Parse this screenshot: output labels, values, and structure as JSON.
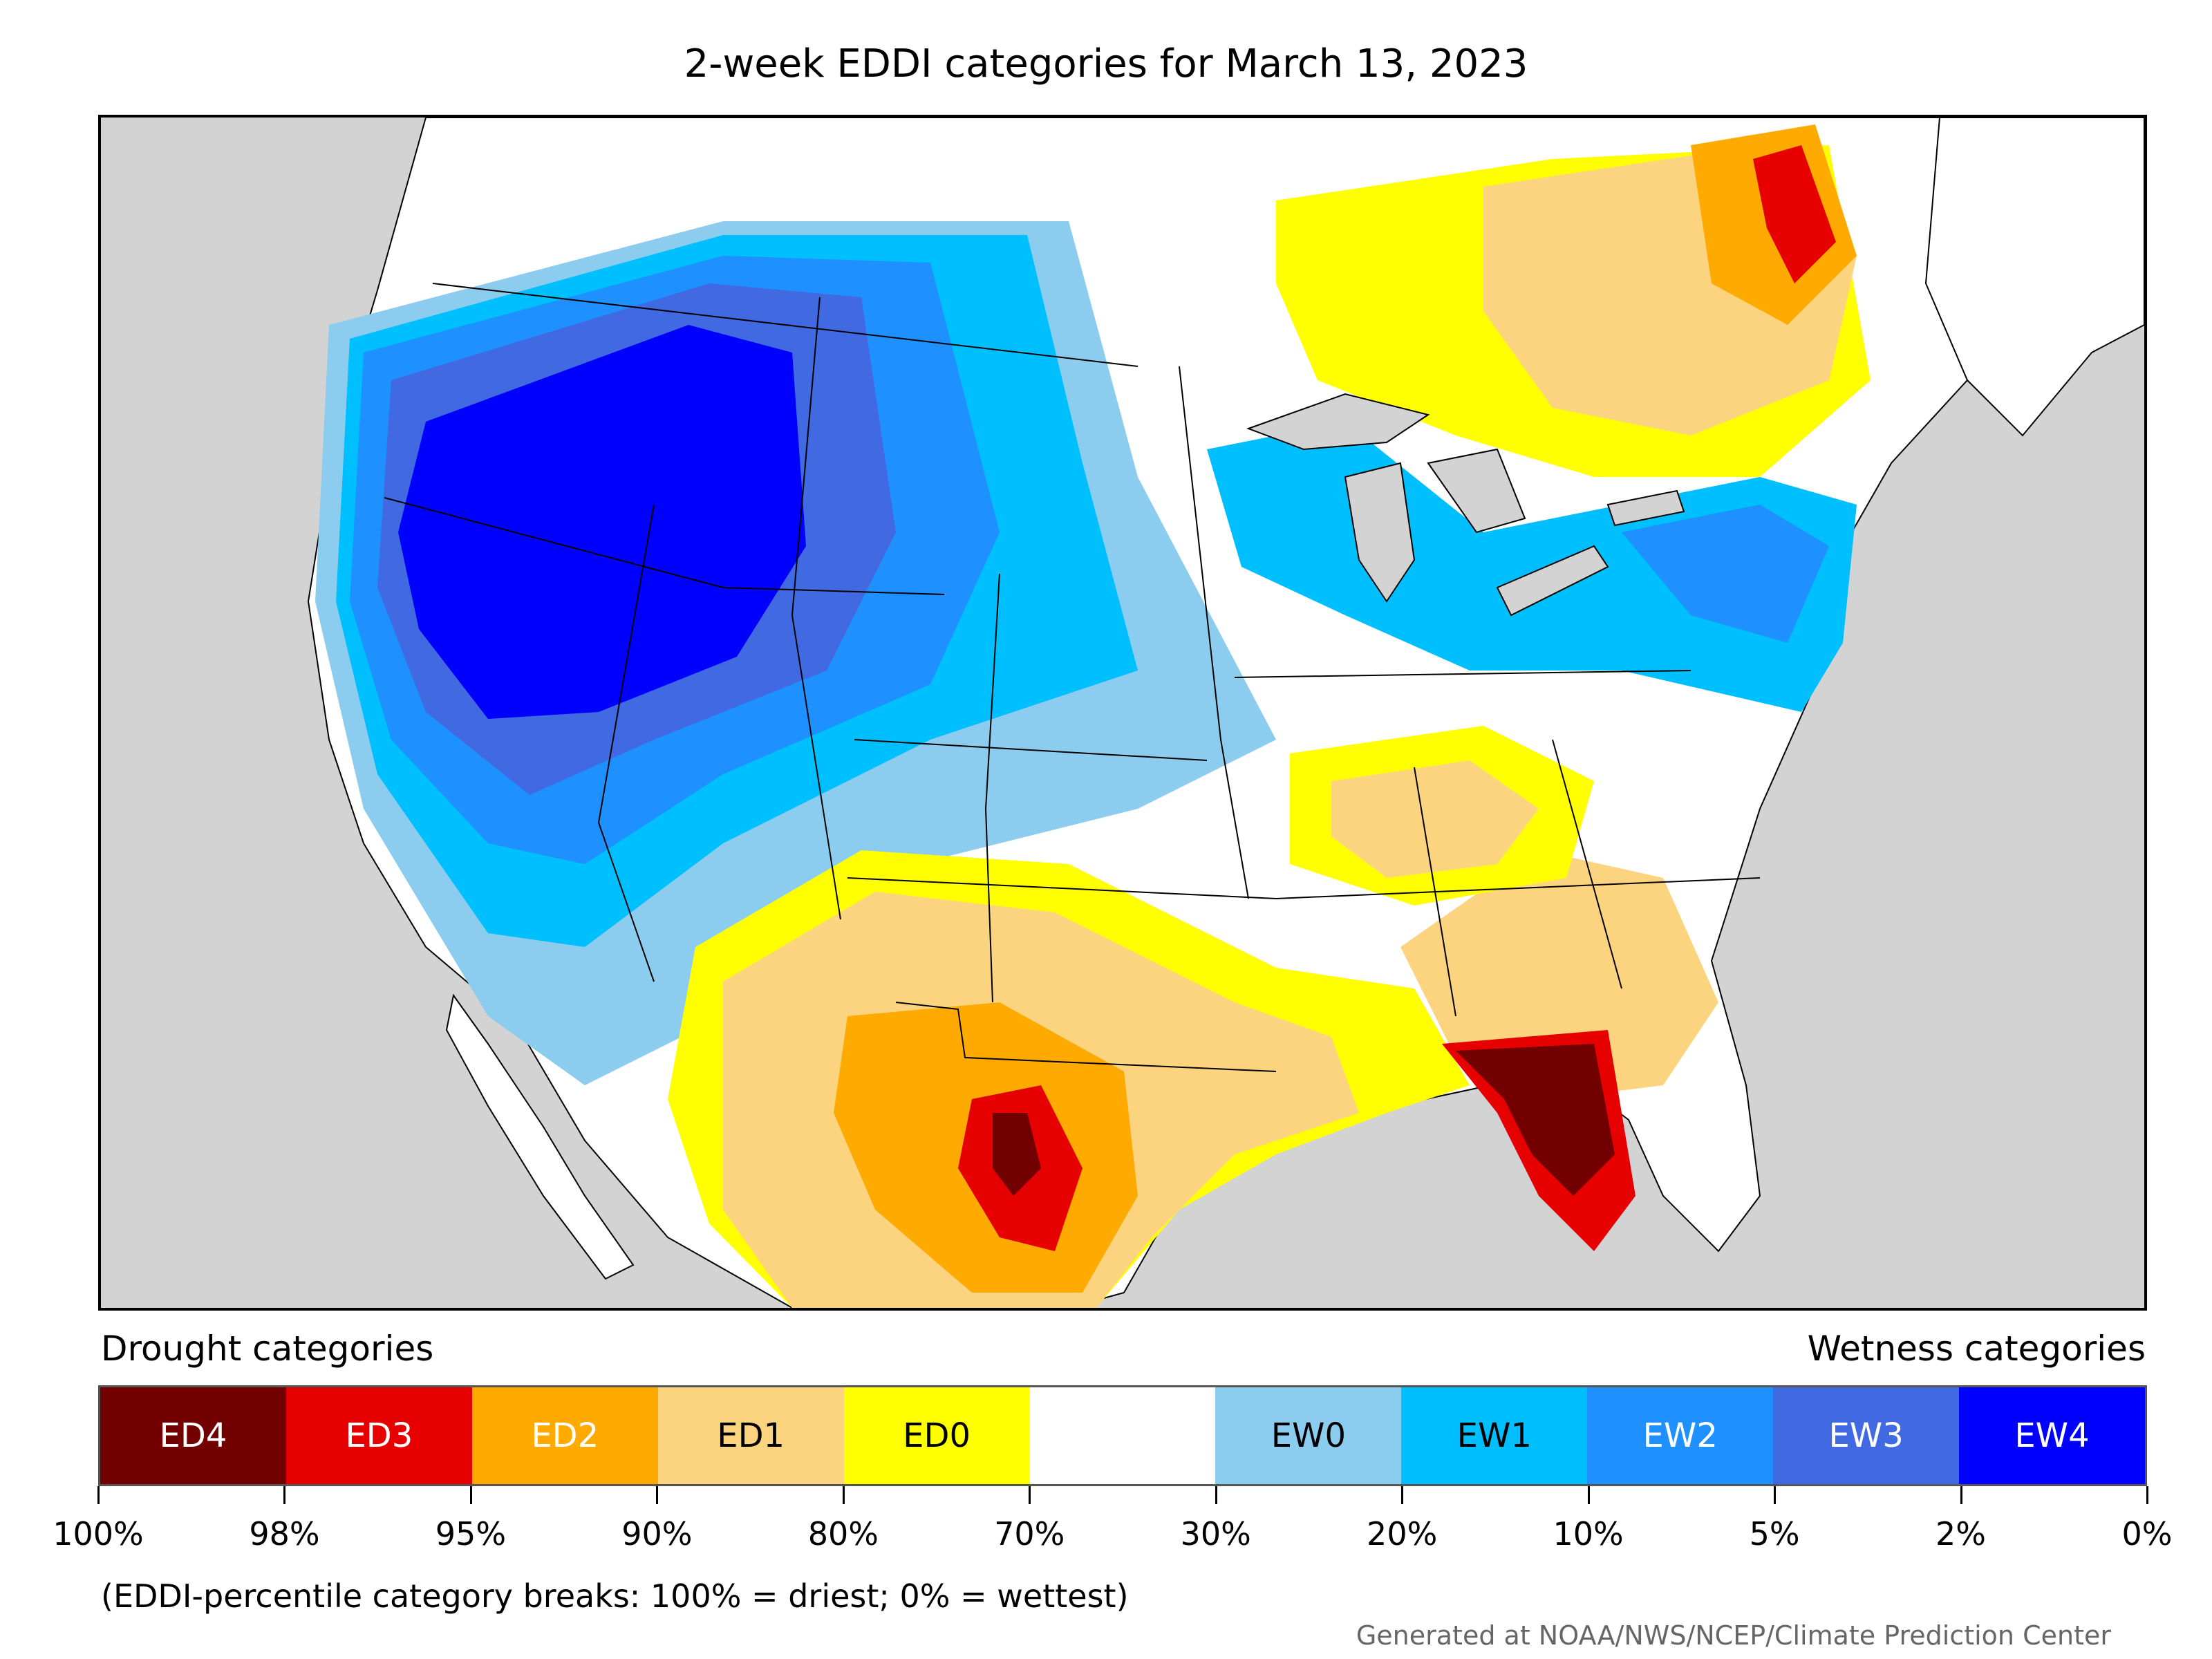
{
  "title": "2-week EDDI categories for March 13, 2023",
  "legend": {
    "drought_heading": "Drought categories",
    "wetness_heading": "Wetness categories",
    "categories": [
      {
        "label": "ED4",
        "color": "#730000",
        "text_color": "#ffffff"
      },
      {
        "label": "ED3",
        "color": "#e60000",
        "text_color": "#ffffff"
      },
      {
        "label": "ED2",
        "color": "#ffaa00",
        "text_color": "#ffffff"
      },
      {
        "label": "ED1",
        "color": "#fcd37f",
        "text_color": "#000000"
      },
      {
        "label": "ED0",
        "color": "#ffff00",
        "text_color": "#000000"
      },
      {
        "label": "",
        "color": "#ffffff",
        "text_color": "#000000"
      },
      {
        "label": "EW0",
        "color": "#8ccdef",
        "text_color": "#000000"
      },
      {
        "label": "EW1",
        "color": "#00bfff",
        "text_color": "#000000"
      },
      {
        "label": "EW2",
        "color": "#1e90ff",
        "text_color": "#ffffff"
      },
      {
        "label": "EW3",
        "color": "#4169e1",
        "text_color": "#ffffff"
      },
      {
        "label": "EW4",
        "color": "#0000ff",
        "text_color": "#ffffff"
      }
    ],
    "breaks": [
      "100%",
      "98%",
      "95%",
      "90%",
      "80%",
      "70%",
      "30%",
      "20%",
      "10%",
      "5%",
      "2%",
      "0%"
    ]
  },
  "note": "(EDDI-percentile category breaks: 100% = driest; 0% = wettest)",
  "credit": "Generated at NOAA/NWS/NCEP/Climate Prediction Center",
  "colors": {
    "background": "#d3d3d3",
    "water": "#d3d3d3",
    "land_neutral": "#ffffff",
    "borders": "#000000"
  }
}
